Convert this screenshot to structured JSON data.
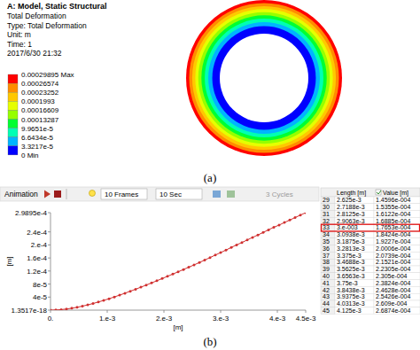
{
  "header": {
    "title": "A: Model, Static Structural",
    "lines": [
      "Total Deformation",
      "Type: Total Deformation",
      "Unit: m",
      "Time: 1",
      "2017/6/30 21:32"
    ]
  },
  "color_bar": {
    "levels": [
      0.00029895,
      0.00026574,
      0.00023252,
      0.0001993,
      0.00016609,
      0.00013287,
      9.9651e-05,
      6.6434e-05,
      3.3217e-05,
      0
    ],
    "labels": [
      "0.00029895 Max",
      "0.00026574",
      "0.00023252",
      "0.0001993",
      "0.00016609",
      "0.00013287",
      "9.9651e-5",
      "6.6434e-5",
      "3.3217e-5",
      "0 Min"
    ],
    "colors": [
      "#ff0000",
      "#ff8c00",
      "#ffc800",
      "#e6ff00",
      "#96ff00",
      "#00ff32",
      "#00ffb4",
      "#00b4ff",
      "#0000ff"
    ]
  },
  "panel_labels": [
    "(a)",
    "(b)"
  ],
  "toolbar": {
    "title": "Animation",
    "frames": "10 Frames",
    "duration": "10 Sec",
    "cycles": "3 Cycles"
  },
  "chart_data": {
    "type": "line",
    "x_label": "[m]",
    "y_label": "[m]",
    "color": "#d03030",
    "marker": "circle",
    "grid": false,
    "xlim": [
      0,
      0.0045
    ],
    "ylim": [
      1.3517e-18,
      0.00029895
    ],
    "xticks": [
      {
        "value": 0,
        "label": "0."
      },
      {
        "value": 0.001,
        "label": "1.e-3"
      },
      {
        "value": 0.002,
        "label": "2.e-3"
      },
      {
        "value": 0.003,
        "label": "3.e-3"
      },
      {
        "value": 0.004,
        "label": "4.e-3"
      },
      {
        "value": 0.0045,
        "label": "4.5e-3"
      }
    ],
    "yticks": [
      {
        "value": 1.3517e-18,
        "label": "1.3517e-18"
      },
      {
        "value": 4e-05,
        "label": "4e-5"
      },
      {
        "value": 8e-05,
        "label": "8e-5"
      },
      {
        "value": 0.00012,
        "label": "1.2e-4"
      },
      {
        "value": 0.00016,
        "label": "1.6e-4"
      },
      {
        "value": 0.0002,
        "label": "2.e-4"
      },
      {
        "value": 0.00024,
        "label": "2.4e-4"
      },
      {
        "value": 0.00029895,
        "label": "2.9895e-4"
      }
    ],
    "x": [
      0,
      9.375e-05,
      0.0001875,
      0.00028125,
      0.000375,
      0.00046875,
      0.0005625,
      0.00065625,
      0.00075,
      0.00084375,
      0.0009375,
      0.00103125,
      0.001125,
      0.00121875,
      0.0013125,
      0.00140625,
      0.0015,
      0.00159375,
      0.0016875,
      0.00178125,
      0.001875,
      0.00196875,
      0.0020625,
      0.00215625,
      0.00225,
      0.00234375,
      0.0024375,
      0.00253125,
      0.002625,
      0.00271875,
      0.0028125,
      0.00290625,
      0.003,
      0.00309375,
      0.0031875,
      0.00328125,
      0.003375,
      0.00346875,
      0.0035625,
      0.00365625,
      0.00375,
      0.00384375,
      0.0039375,
      0.00403125,
      0.004125,
      0.00421875,
      0.0043125,
      0.00440625,
      0.0045
    ],
    "values": [
      1.3517e-18,
      4e-07,
      1.55e-06,
      3.38e-06,
      5.8e-06,
      8.76e-06,
      1.219e-05,
      1.606e-05,
      2.031e-05,
      2.491e-05,
      2.981e-05,
      3.499e-05,
      4.041e-05,
      4.606e-05,
      5.191e-05,
      5.793e-05,
      6.41e-05,
      7.042e-05,
      7.687e-05,
      8.343e-05,
      9.01e-05,
      9.684e-05,
      0.00010368,
      0.00011057,
      0.00011755,
      0.00012458,
      0.00013165,
      0.00013878,
      0.00014596,
      0.00015355,
      0.00016122,
      0.00016885,
      0.00017653,
      0.00018424,
      0.00019227,
      0.00020006,
      0.00020739,
      0.00021521,
      0.00022305,
      0.0002305,
      0.00023824,
      0.00024628,
      0.00025426,
      0.0002609,
      0.00026874,
      0.00027629,
      0.00028384,
      0.0002914,
      0.00029895
    ]
  },
  "table": {
    "columns": [
      "Length [m]",
      "Value [m]"
    ],
    "highlight": "33",
    "rows": [
      [
        "29",
        "2.625e-3",
        "1.4596e-004"
      ],
      [
        "30",
        "2.7188e-3",
        "1.5355e-004"
      ],
      [
        "31",
        "2.8125e-3",
        "1.6122e-004"
      ],
      [
        "32",
        "2.9063e-3",
        "1.6885e-004"
      ],
      [
        "33",
        "3.e-003",
        "1.7653e-004"
      ],
      [
        "34",
        "3.0938e-3",
        "1.8424e-004"
      ],
      [
        "35",
        "3.1875e-3",
        "1.9227e-004"
      ],
      [
        "36",
        "3.2813e-3",
        "2.0006e-004"
      ],
      [
        "37",
        "3.375e-3",
        "2.0739e-004"
      ],
      [
        "38",
        "3.4688e-3",
        "2.1521e-004"
      ],
      [
        "39",
        "3.5625e-3",
        "2.2305e-004"
      ],
      [
        "40",
        "3.6563e-3",
        "2.305e-004"
      ],
      [
        "41",
        "3.75e-3",
        "2.3824e-004"
      ],
      [
        "42",
        "3.8438e-3",
        "2.4628e-004"
      ],
      [
        "43",
        "3.9375e-3",
        "2.5426e-004"
      ],
      [
        "44",
        "4.0313e-3",
        "2.609e-004"
      ],
      [
        "45",
        "4.125e-3",
        "2.6874e-004"
      ]
    ]
  }
}
